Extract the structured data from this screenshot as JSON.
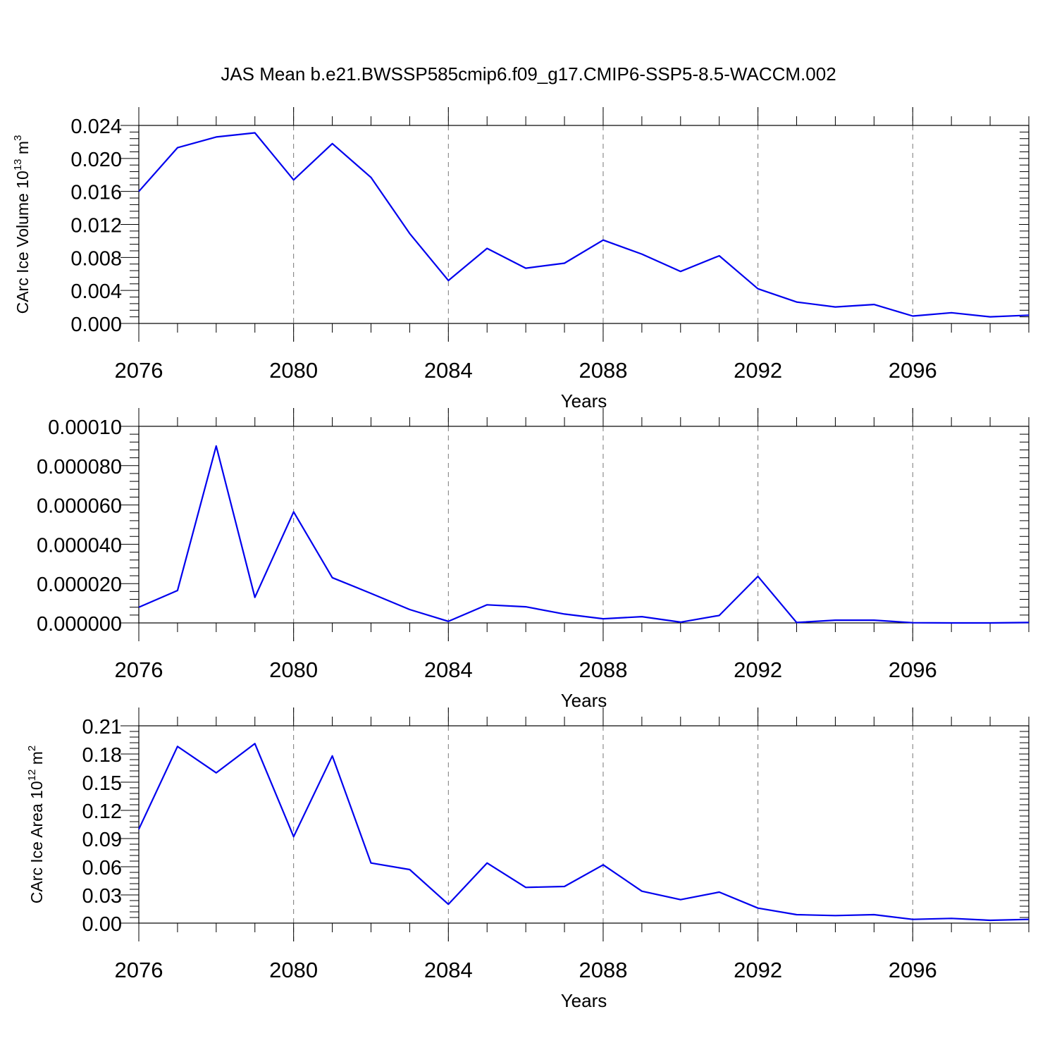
{
  "title": "JAS Mean b.e21.BWSSP585cmip6.f09_g17.CMIP6-SSP5-8.5-WACCM.002",
  "line_color": "#0000ee",
  "chart_data": [
    {
      "type": "line",
      "ylabel_main": "CArc Ice Volume 10",
      "ylabel_exp": "13",
      "ylabel_unit": " m",
      "ylabel_unit_exp": "3",
      "xlabel": "Years",
      "xlim": [
        2076,
        2099
      ],
      "ylim": [
        0,
        0.024
      ],
      "yticks": [
        "0.000",
        "0.004",
        "0.008",
        "0.012",
        "0.016",
        "0.020",
        "0.024"
      ],
      "xticks": [
        "2076",
        "2080",
        "2084",
        "2088",
        "2092",
        "2096"
      ],
      "x": [
        2076,
        2077,
        2078,
        2079,
        2080,
        2081,
        2082,
        2083,
        2084,
        2085,
        2086,
        2087,
        2088,
        2089,
        2090,
        2091,
        2092,
        2093,
        2094,
        2095,
        2096,
        2097,
        2098,
        2099
      ],
      "series": [
        {
          "values": [
            0.016,
            0.0213,
            0.0226,
            0.0231,
            0.0174,
            0.0218,
            0.0177,
            0.0109,
            0.0052,
            0.0091,
            0.0067,
            0.0073,
            0.0101,
            0.0084,
            0.0063,
            0.0082,
            0.0042,
            0.0026,
            0.002,
            0.0023,
            0.0009,
            0.0013,
            0.0008,
            0.001
          ]
        }
      ]
    },
    {
      "type": "line",
      "ylabel_main": "",
      "ylabel_exp": "",
      "ylabel_unit": "",
      "ylabel_unit_exp": "",
      "xlabel": "Years",
      "xlim": [
        2076,
        2099
      ],
      "ylim": [
        0,
        0.0001
      ],
      "yticks": [
        "0.000000",
        "0.000020",
        "0.000040",
        "0.000060",
        "0.000080",
        "0.00010"
      ],
      "xticks": [
        "2076",
        "2080",
        "2084",
        "2088",
        "2092",
        "2096"
      ],
      "x": [
        2076,
        2077,
        2078,
        2079,
        2080,
        2081,
        2082,
        2083,
        2084,
        2085,
        2086,
        2087,
        2088,
        2089,
        2090,
        2091,
        2092,
        2093,
        2094,
        2095,
        2096,
        2097,
        2098,
        2099
      ],
      "series": [
        {
          "values": [
            8e-06,
            1.65e-05,
            9e-05,
            1.3e-05,
            5.65e-05,
            2.3e-05,
            1.5e-05,
            6.8e-06,
            8e-07,
            9.2e-06,
            8.2e-06,
            4.5e-06,
            2.1e-06,
            3.2e-06,
            4e-07,
            3.8e-06,
            2.37e-05,
            2e-07,
            1.4e-06,
            1.4e-06,
            1e-07,
            0.0,
            0.0,
            2e-07
          ]
        }
      ]
    },
    {
      "type": "line",
      "ylabel_main": "CArc Ice Area 10",
      "ylabel_exp": "12",
      "ylabel_unit": " m",
      "ylabel_unit_exp": "2",
      "xlabel": "Years",
      "xlim": [
        2076,
        2099
      ],
      "ylim": [
        0,
        0.21
      ],
      "yticks": [
        "0.00",
        "0.03",
        "0.06",
        "0.09",
        "0.12",
        "0.15",
        "0.18",
        "0.21"
      ],
      "xticks": [
        "2076",
        "2080",
        "2084",
        "2088",
        "2092",
        "2096"
      ],
      "x": [
        2076,
        2077,
        2078,
        2079,
        2080,
        2081,
        2082,
        2083,
        2084,
        2085,
        2086,
        2087,
        2088,
        2089,
        2090,
        2091,
        2092,
        2093,
        2094,
        2095,
        2096,
        2097,
        2098,
        2099
      ],
      "series": [
        {
          "values": [
            0.1,
            0.188,
            0.16,
            0.191,
            0.092,
            0.178,
            0.064,
            0.057,
            0.02,
            0.064,
            0.038,
            0.039,
            0.062,
            0.034,
            0.025,
            0.033,
            0.016,
            0.009,
            0.008,
            0.009,
            0.004,
            0.005,
            0.003,
            0.004
          ]
        }
      ]
    }
  ]
}
